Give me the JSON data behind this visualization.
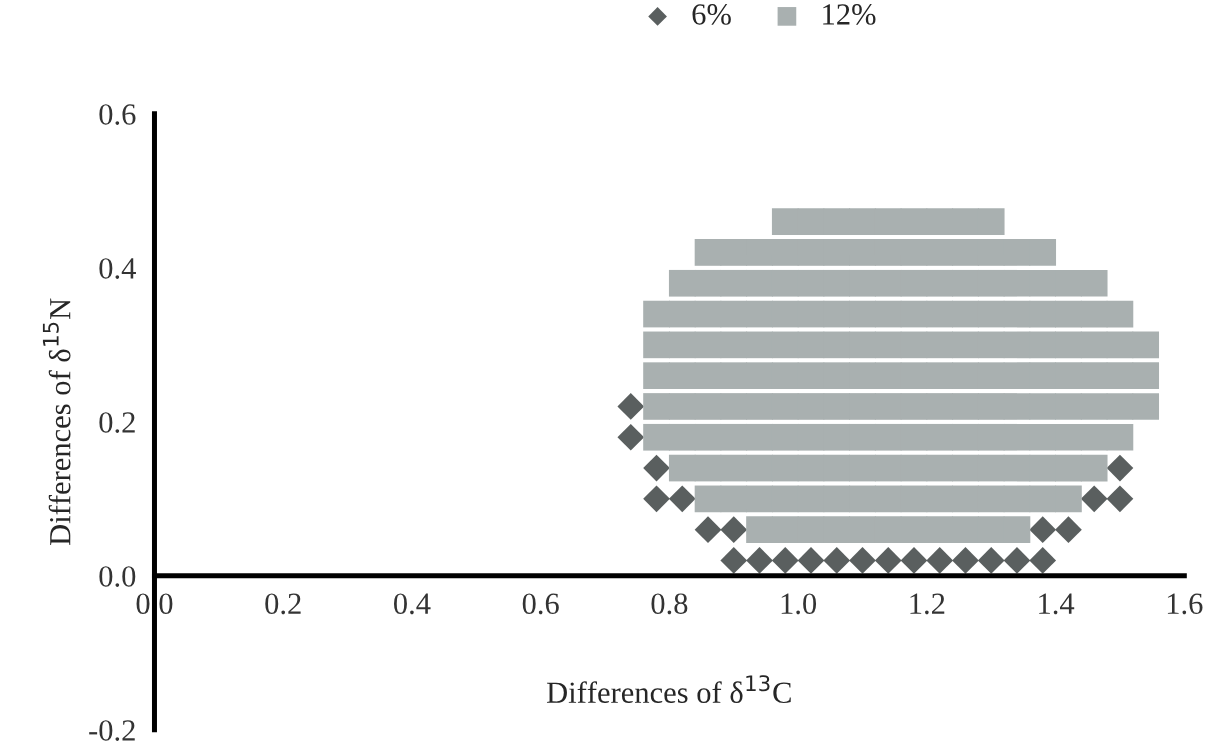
{
  "chart_data": {
    "type": "scatter",
    "xlabel": "Differences of δ$^{13}$C",
    "ylabel": "Differences of δ$^{15}$N",
    "xlim": [
      0,
      1.6
    ],
    "ylim": [
      -0.2,
      0.6
    ],
    "xticks": [
      {
        "value": 0,
        "label": "0.0"
      },
      0.2,
      0.4,
      0.6,
      0.8,
      {
        "value": 1,
        "label": "1.0"
      },
      1.2,
      1.4,
      1.6
    ],
    "yticks": [
      {
        "value": -0.2,
        "label": "-0.2"
      },
      {
        "value": 0,
        "label": "0.0"
      },
      0.2,
      0.4,
      0.6
    ],
    "legend": "top right",
    "grid": false,
    "series": [
      {
        "name": "6%",
        "color": "#5a5f5f",
        "marker": "diamond",
        "x": [
          0.9,
          0.94,
          0.98,
          1.02,
          1.06,
          1.1,
          1.14,
          1.18,
          1.22,
          1.26,
          1.3,
          1.34,
          1.38,
          0.86,
          0.9,
          1.38,
          1.42,
          0.78,
          0.82,
          1.46,
          1.5,
          0.78,
          1.5,
          0.74,
          0.74
        ],
        "values": [
          0.02,
          0.02,
          0.02,
          0.02,
          0.02,
          0.02,
          0.02,
          0.02,
          0.02,
          0.02,
          0.02,
          0.02,
          0.02,
          0.06,
          0.06,
          0.06,
          0.06,
          0.1,
          0.1,
          0.1,
          0.1,
          0.14,
          0.14,
          0.18,
          0.22
        ]
      },
      {
        "name": "12%",
        "color": "#a9b0b0",
        "marker": "square",
        "x": [
          0.98,
          1.02,
          1.06,
          1.1,
          1.14,
          1.18,
          1.22,
          1.26,
          1.3,
          0.86,
          0.9,
          0.94,
          0.98,
          1.02,
          1.06,
          1.1,
          1.14,
          1.18,
          1.22,
          1.26,
          1.3,
          1.34,
          1.38,
          0.82,
          0.86,
          0.9,
          0.94,
          0.98,
          1.02,
          1.06,
          1.1,
          1.14,
          1.18,
          1.22,
          1.26,
          1.3,
          1.34,
          1.38,
          1.42,
          1.46,
          0.78,
          0.82,
          0.86,
          0.9,
          0.94,
          0.98,
          1.02,
          1.06,
          1.1,
          1.14,
          1.18,
          1.22,
          1.26,
          1.3,
          1.34,
          1.38,
          1.42,
          1.46,
          1.5,
          0.78,
          0.82,
          0.86,
          0.9,
          0.94,
          0.98,
          1.02,
          1.06,
          1.1,
          1.14,
          1.18,
          1.22,
          1.26,
          1.3,
          1.34,
          1.38,
          1.42,
          1.46,
          1.5,
          1.54,
          0.78,
          0.82,
          0.86,
          0.9,
          0.94,
          0.98,
          1.02,
          1.06,
          1.1,
          1.14,
          1.18,
          1.22,
          1.26,
          1.3,
          1.34,
          1.38,
          1.42,
          1.46,
          1.5,
          1.54,
          0.78,
          0.82,
          0.86,
          0.9,
          0.94,
          0.98,
          1.02,
          1.06,
          1.1,
          1.14,
          1.18,
          1.22,
          1.26,
          1.3,
          1.34,
          1.38,
          1.42,
          1.46,
          1.5,
          1.54,
          0.78,
          0.82,
          0.86,
          0.9,
          0.94,
          0.98,
          1.02,
          1.06,
          1.1,
          1.14,
          1.18,
          1.22,
          1.26,
          1.3,
          1.34,
          1.38,
          1.42,
          1.46,
          1.5,
          0.82,
          0.86,
          0.9,
          0.94,
          0.98,
          1.02,
          1.06,
          1.1,
          1.14,
          1.18,
          1.22,
          1.26,
          1.3,
          1.34,
          1.38,
          1.42,
          1.46,
          0.86,
          0.9,
          0.94,
          0.98,
          1.02,
          1.06,
          1.1,
          1.14,
          1.18,
          1.22,
          1.26,
          1.3,
          1.34,
          1.38,
          1.42,
          0.94,
          0.98,
          1.02,
          1.06,
          1.1,
          1.14,
          1.18,
          1.22,
          1.26,
          1.3,
          1.34
        ],
        "values": [
          0.46,
          0.46,
          0.46,
          0.46,
          0.46,
          0.46,
          0.46,
          0.46,
          0.46,
          0.42,
          0.42,
          0.42,
          0.42,
          0.42,
          0.42,
          0.42,
          0.42,
          0.42,
          0.42,
          0.42,
          0.42,
          0.42,
          0.42,
          0.38,
          0.38,
          0.38,
          0.38,
          0.38,
          0.38,
          0.38,
          0.38,
          0.38,
          0.38,
          0.38,
          0.38,
          0.38,
          0.38,
          0.38,
          0.38,
          0.38,
          0.34,
          0.34,
          0.34,
          0.34,
          0.34,
          0.34,
          0.34,
          0.34,
          0.34,
          0.34,
          0.34,
          0.34,
          0.34,
          0.34,
          0.34,
          0.34,
          0.34,
          0.34,
          0.34,
          0.3,
          0.3,
          0.3,
          0.3,
          0.3,
          0.3,
          0.3,
          0.3,
          0.3,
          0.3,
          0.3,
          0.3,
          0.3,
          0.3,
          0.3,
          0.3,
          0.3,
          0.3,
          0.3,
          0.3,
          0.26,
          0.26,
          0.26,
          0.26,
          0.26,
          0.26,
          0.26,
          0.26,
          0.26,
          0.26,
          0.26,
          0.26,
          0.26,
          0.26,
          0.26,
          0.26,
          0.26,
          0.26,
          0.26,
          0.26,
          0.22,
          0.22,
          0.22,
          0.22,
          0.22,
          0.22,
          0.22,
          0.22,
          0.22,
          0.22,
          0.22,
          0.22,
          0.22,
          0.22,
          0.22,
          0.22,
          0.22,
          0.22,
          0.22,
          0.22,
          0.18,
          0.18,
          0.18,
          0.18,
          0.18,
          0.18,
          0.18,
          0.18,
          0.18,
          0.18,
          0.18,
          0.18,
          0.18,
          0.18,
          0.18,
          0.18,
          0.18,
          0.18,
          0.18,
          0.14,
          0.14,
          0.14,
          0.14,
          0.14,
          0.14,
          0.14,
          0.14,
          0.14,
          0.14,
          0.14,
          0.14,
          0.14,
          0.14,
          0.14,
          0.14,
          0.14,
          0.1,
          0.1,
          0.1,
          0.1,
          0.1,
          0.1,
          0.1,
          0.1,
          0.1,
          0.1,
          0.1,
          0.1,
          0.1,
          0.1,
          0.1,
          0.06,
          0.06,
          0.06,
          0.06,
          0.06,
          0.06,
          0.06,
          0.06,
          0.06,
          0.06,
          0.06
        ]
      }
    ]
  }
}
